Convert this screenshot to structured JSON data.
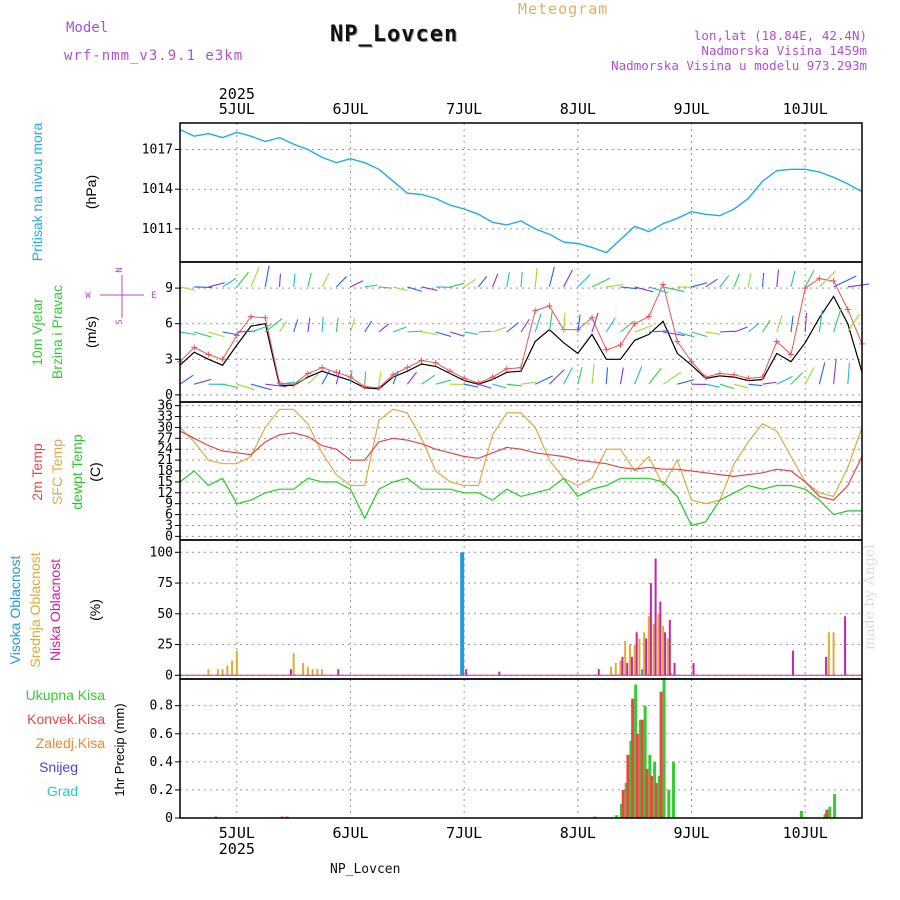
{
  "header": {
    "title": "NP_Lovcen",
    "meteogram_label": "Meteogram",
    "model_label": "Model",
    "model_value": "wrf-nmm_v3.9.1  e3km",
    "lonlat": "lon,lat (18.84E, 42.4N)",
    "elevation": "Nadmorska Visina 1459m",
    "model_elevation": "Nadmorska Visina u modelu 973.293m",
    "footer_station": "NP_Lovcen",
    "watermark": "made by Angel"
  },
  "time_axis": {
    "year": "2025",
    "days": [
      "5JUL",
      "6JUL",
      "7JUL",
      "8JUL",
      "9JUL",
      "10JUL"
    ],
    "day_positions_hours": [
      12,
      36,
      60,
      84,
      108,
      132
    ],
    "start_hour": 0,
    "end_hour": 144
  },
  "colors": {
    "pressure": "#22aaee",
    "speed_black": "#000000",
    "speed_red": "#ee5555",
    "t2m": "#e04848",
    "tsfc": "#e0aa44",
    "dewpt": "#22cc22",
    "high_cloud": "#2299dd",
    "mid_cloud": "#e0aa33",
    "low_cloud": "#cc22aa",
    "total_precip": "#33cc33",
    "conv_precip": "#ee4444",
    "frozen": "#ee8833",
    "snow": "#4444dd",
    "hail": "#22cccc",
    "wind_left": "#33cc33",
    "wind_compass": "#b04fd0"
  },
  "chart_data": [
    {
      "type": "line",
      "id": "pressure",
      "ylabel_main": "Pritisak na nivou mora",
      "ylabel_unit": "(hPa)",
      "yticks": [
        "1011",
        "1014",
        "1017"
      ],
      "ytick_values": [
        1011,
        1014,
        1017
      ],
      "ylim": [
        1008.5,
        1019
      ],
      "series": [
        {
          "name": "Pritisak na nivou mora",
          "x": [
            0,
            3,
            6,
            9,
            12,
            15,
            18,
            21,
            24,
            27,
            30,
            33,
            36,
            39,
            42,
            45,
            48,
            51,
            54,
            57,
            60,
            63,
            66,
            69,
            72,
            75,
            78,
            81,
            84,
            87,
            90,
            93,
            96,
            99,
            102,
            105,
            108,
            111,
            114,
            117,
            120,
            123,
            126,
            129,
            132,
            135,
            138,
            141,
            144
          ],
          "values": [
            1018.5,
            1018.0,
            1018.2,
            1017.9,
            1018.3,
            1018.0,
            1017.6,
            1017.9,
            1017.4,
            1017.0,
            1016.4,
            1016.0,
            1016.3,
            1016.0,
            1015.5,
            1014.6,
            1013.7,
            1013.6,
            1013.3,
            1012.8,
            1012.5,
            1012.1,
            1011.5,
            1011.3,
            1011.6,
            1011.0,
            1010.6,
            1010.0,
            1009.9,
            1009.6,
            1009.2,
            1010.2,
            1011.2,
            1010.8,
            1011.4,
            1011.8,
            1012.3,
            1012.1,
            1012.0,
            1012.5,
            1013.3,
            1014.6,
            1015.4,
            1015.5,
            1015.5,
            1015.3,
            1014.9,
            1014.4,
            1013.8
          ]
        }
      ]
    },
    {
      "type": "line",
      "id": "wind",
      "ylabel_main": "10m Vjetar",
      "ylabel_sub": "Brzina i Pravac",
      "ylabel_unit": "(m/s)",
      "compass": [
        "N",
        "W",
        "E",
        "S"
      ],
      "yticks": [
        "0",
        "3",
        "6",
        "9"
      ],
      "ytick_values": [
        0,
        3,
        6,
        9
      ],
      "ylim": [
        -0.6,
        11.2
      ],
      "series": [
        {
          "name": "speed",
          "x": [
            0,
            3,
            6,
            9,
            12,
            15,
            18,
            21,
            24,
            27,
            30,
            33,
            36,
            39,
            42,
            45,
            48,
            51,
            54,
            57,
            60,
            63,
            66,
            69,
            72,
            75,
            78,
            81,
            84,
            87,
            90,
            93,
            96,
            99,
            102,
            105,
            108,
            111,
            114,
            117,
            120,
            123,
            126,
            129,
            132,
            135,
            138,
            141,
            144
          ],
          "values": [
            2.5,
            3.6,
            3.0,
            2.5,
            4.2,
            5.8,
            6.0,
            0.8,
            0.8,
            1.5,
            2.0,
            1.6,
            1.2,
            0.6,
            0.5,
            1.5,
            2.0,
            2.6,
            2.4,
            1.8,
            1.2,
            0.9,
            1.3,
            1.9,
            2.0,
            4.5,
            5.5,
            4.4,
            3.5,
            5.1,
            3.0,
            3.0,
            4.6,
            5.1,
            6.2,
            3.5,
            2.5,
            1.4,
            1.6,
            1.5,
            1.2,
            1.3,
            3.5,
            2.8,
            4.4,
            6.5,
            8.3,
            6.0,
            1.9
          ]
        },
        {
          "name": "gust",
          "x": [
            0,
            3,
            6,
            9,
            12,
            15,
            18,
            21,
            24,
            27,
            30,
            33,
            36,
            39,
            42,
            45,
            48,
            51,
            54,
            57,
            60,
            63,
            66,
            69,
            72,
            75,
            78,
            81,
            84,
            87,
            90,
            93,
            96,
            99,
            102,
            105,
            108,
            111,
            114,
            117,
            120,
            123,
            126,
            129,
            132,
            135,
            138,
            141,
            144
          ],
          "values": [
            2.8,
            4.0,
            3.4,
            3.0,
            5.0,
            6.6,
            6.5,
            1.0,
            0.9,
            1.8,
            2.3,
            1.9,
            1.5,
            0.7,
            0.6,
            1.7,
            2.3,
            2.9,
            2.7,
            2.0,
            1.4,
            1.0,
            1.5,
            2.2,
            2.3,
            7.1,
            7.5,
            5.5,
            5.5,
            6.5,
            3.8,
            4.2,
            6.0,
            6.6,
            9.3,
            4.5,
            2.8,
            1.5,
            1.8,
            1.7,
            1.4,
            1.5,
            4.5,
            3.4,
            9.0,
            9.8,
            9.6,
            7.2,
            4.3
          ]
        }
      ]
    },
    {
      "type": "line",
      "id": "temperature",
      "ylabel_lines": [
        "2m Temp",
        "SFC Temp",
        "dewpt Temp"
      ],
      "ylabel_unit": "(C)",
      "yticks": [
        "0",
        "3",
        "6",
        "9",
        "12",
        "15",
        "18",
        "21",
        "24",
        "27",
        "30",
        "33",
        "36"
      ],
      "ytick_values": [
        0,
        3,
        6,
        9,
        12,
        15,
        18,
        21,
        24,
        27,
        30,
        33,
        36
      ],
      "ylim": [
        -1,
        37
      ],
      "series": [
        {
          "name": "2m Temp",
          "x": [
            0,
            3,
            6,
            9,
            12,
            15,
            18,
            21,
            24,
            27,
            30,
            33,
            36,
            39,
            42,
            45,
            48,
            51,
            54,
            57,
            60,
            63,
            66,
            69,
            72,
            75,
            78,
            81,
            84,
            87,
            90,
            93,
            96,
            99,
            102,
            105,
            108,
            111,
            114,
            117,
            120,
            123,
            126,
            129,
            132,
            135,
            138,
            141,
            144
          ],
          "values": [
            29,
            27,
            25,
            23.5,
            23,
            22.5,
            26,
            28,
            28.5,
            27.5,
            25,
            24,
            21,
            21,
            26,
            27,
            26.5,
            25.5,
            24,
            23,
            22,
            21.5,
            23,
            24.5,
            24,
            23,
            22.5,
            22,
            21,
            20.5,
            20,
            19,
            18.5,
            19,
            18.5,
            18.5,
            18,
            17.5,
            17,
            16.5,
            17,
            17.5,
            18.5,
            18,
            15,
            11,
            10,
            14,
            22
          ]
        },
        {
          "name": "SFC Temp",
          "x": [
            0,
            3,
            6,
            9,
            12,
            15,
            18,
            21,
            24,
            27,
            30,
            33,
            36,
            39,
            42,
            45,
            48,
            51,
            54,
            57,
            60,
            63,
            66,
            69,
            72,
            75,
            78,
            81,
            84,
            87,
            90,
            93,
            96,
            99,
            102,
            105,
            108,
            111,
            114,
            117,
            120,
            123,
            126,
            129,
            132,
            135,
            138,
            141,
            144
          ],
          "values": [
            30,
            26,
            21,
            20,
            20,
            22,
            30,
            35,
            35,
            31,
            23,
            17,
            14,
            14,
            32,
            35,
            34,
            27,
            18,
            15,
            14,
            14,
            28,
            34,
            34,
            30,
            21,
            16,
            14,
            16,
            24,
            24,
            18,
            22,
            14,
            21,
            10,
            9,
            10,
            20,
            26,
            31,
            29,
            22,
            15,
            12,
            11,
            19,
            30
          ]
        },
        {
          "name": "dewpt Temp",
          "x": [
            0,
            3,
            6,
            9,
            12,
            15,
            18,
            21,
            24,
            27,
            30,
            33,
            36,
            39,
            42,
            45,
            48,
            51,
            54,
            57,
            60,
            63,
            66,
            69,
            72,
            75,
            78,
            81,
            84,
            87,
            90,
            93,
            96,
            99,
            102,
            105,
            108,
            111,
            114,
            117,
            120,
            123,
            126,
            129,
            132,
            135,
            138,
            141,
            144
          ],
          "values": [
            15,
            18,
            14,
            16,
            9,
            10,
            12,
            13,
            13,
            16,
            15,
            15,
            13,
            5,
            13,
            15,
            16,
            13,
            13,
            13,
            12,
            12,
            10,
            13,
            11,
            12,
            13,
            16,
            11,
            13,
            14,
            16,
            16,
            16,
            15,
            11,
            3,
            4,
            10,
            12,
            14,
            13,
            14,
            14,
            13,
            10,
            6,
            7,
            7
          ]
        }
      ]
    },
    {
      "type": "bar",
      "id": "clouds",
      "ylabel_lines": [
        "Visoka Oblacnost",
        "Srednja Oblacnost",
        "Niska Oblacnost"
      ],
      "ylabel_unit": "(%)",
      "yticks": [
        "0",
        "25",
        "50",
        "75",
        "100"
      ],
      "ytick_values": [
        0,
        25,
        50,
        75,
        100
      ],
      "ylim": [
        -3,
        110
      ],
      "series": [
        {
          "name": "Visoka Oblacnost",
          "x": [
            60,
            98,
            104
          ],
          "values": [
            100,
            5,
            2
          ]
        },
        {
          "name": "Srednja Oblacnost",
          "x": [
            6,
            8,
            9,
            10,
            11,
            12,
            24,
            26,
            27,
            28,
            29,
            30,
            91,
            92,
            93,
            94,
            95,
            96,
            97,
            98,
            99,
            100,
            101,
            102,
            103,
            137,
            138
          ],
          "values": [
            5,
            5,
            5,
            8,
            12,
            20,
            18,
            10,
            7,
            5,
            5,
            5,
            7,
            10,
            12,
            28,
            25,
            25,
            30,
            35,
            48,
            42,
            50,
            40,
            30,
            35,
            35
          ]
        },
        {
          "name": "Niska Oblacnost",
          "x": [
            23,
            33,
            60,
            67,
            88,
            93,
            94,
            95,
            96,
            98,
            99,
            100,
            101,
            102,
            103,
            104,
            108,
            129,
            136,
            140
          ],
          "values": [
            5,
            5,
            5,
            3,
            5,
            15,
            10,
            15,
            35,
            30,
            75,
            95,
            60,
            35,
            45,
            10,
            10,
            20,
            15,
            48
          ]
        }
      ]
    },
    {
      "type": "bar",
      "id": "precip",
      "ylabel_lines": [
        "Ukupna Kisa",
        "Konvek.Kisa",
        "Zaledj.Kisa",
        "Snijeg",
        "Grad"
      ],
      "ylabel_unit": "1hr Precip (mm)",
      "yticks": [
        "0",
        "0.2",
        "0.4",
        "0.6",
        "0.8"
      ],
      "ytick_values": [
        0,
        0.2,
        0.4,
        0.6,
        0.8
      ],
      "ylim": [
        0,
        0.99
      ],
      "series": [
        {
          "name": "Ukupna Kisa",
          "x": [
            92,
            93,
            94,
            95,
            96,
            97,
            98,
            99,
            100,
            101,
            102,
            103,
            104,
            105,
            106,
            107,
            108,
            109,
            110,
            111,
            112,
            113,
            114,
            115,
            116,
            117,
            118,
            119,
            120,
            121,
            122,
            123,
            124,
            125,
            126,
            127,
            128,
            129,
            130,
            131,
            132,
            133,
            134,
            135,
            136,
            137,
            138
          ],
          "values": [
            0.02,
            0.1,
            0.25,
            0.55,
            0.95,
            0.7,
            0.8,
            0.45,
            0.4,
            0.3,
            1.0,
            0.2,
            0.4,
            0,
            0,
            0,
            0,
            0,
            0,
            0,
            0,
            0,
            0,
            0,
            0,
            0,
            0,
            0,
            0,
            0,
            0,
            0,
            0,
            0,
            0,
            0,
            0,
            0,
            0,
            0.05,
            0,
            0,
            0,
            0,
            0.03,
            0.08,
            0.17
          ]
        },
        {
          "name": "Konvek.Kisa",
          "x": [
            8,
            22,
            23,
            88,
            94,
            95,
            96,
            97,
            98,
            99,
            100,
            101,
            102,
            137
          ],
          "values": [
            0.01,
            0.01,
            0.01,
            0.01,
            0.2,
            0.45,
            0.85,
            0.6,
            0.7,
            0.35,
            0.3,
            0.25,
            0.9,
            0.06
          ]
        }
      ]
    }
  ]
}
